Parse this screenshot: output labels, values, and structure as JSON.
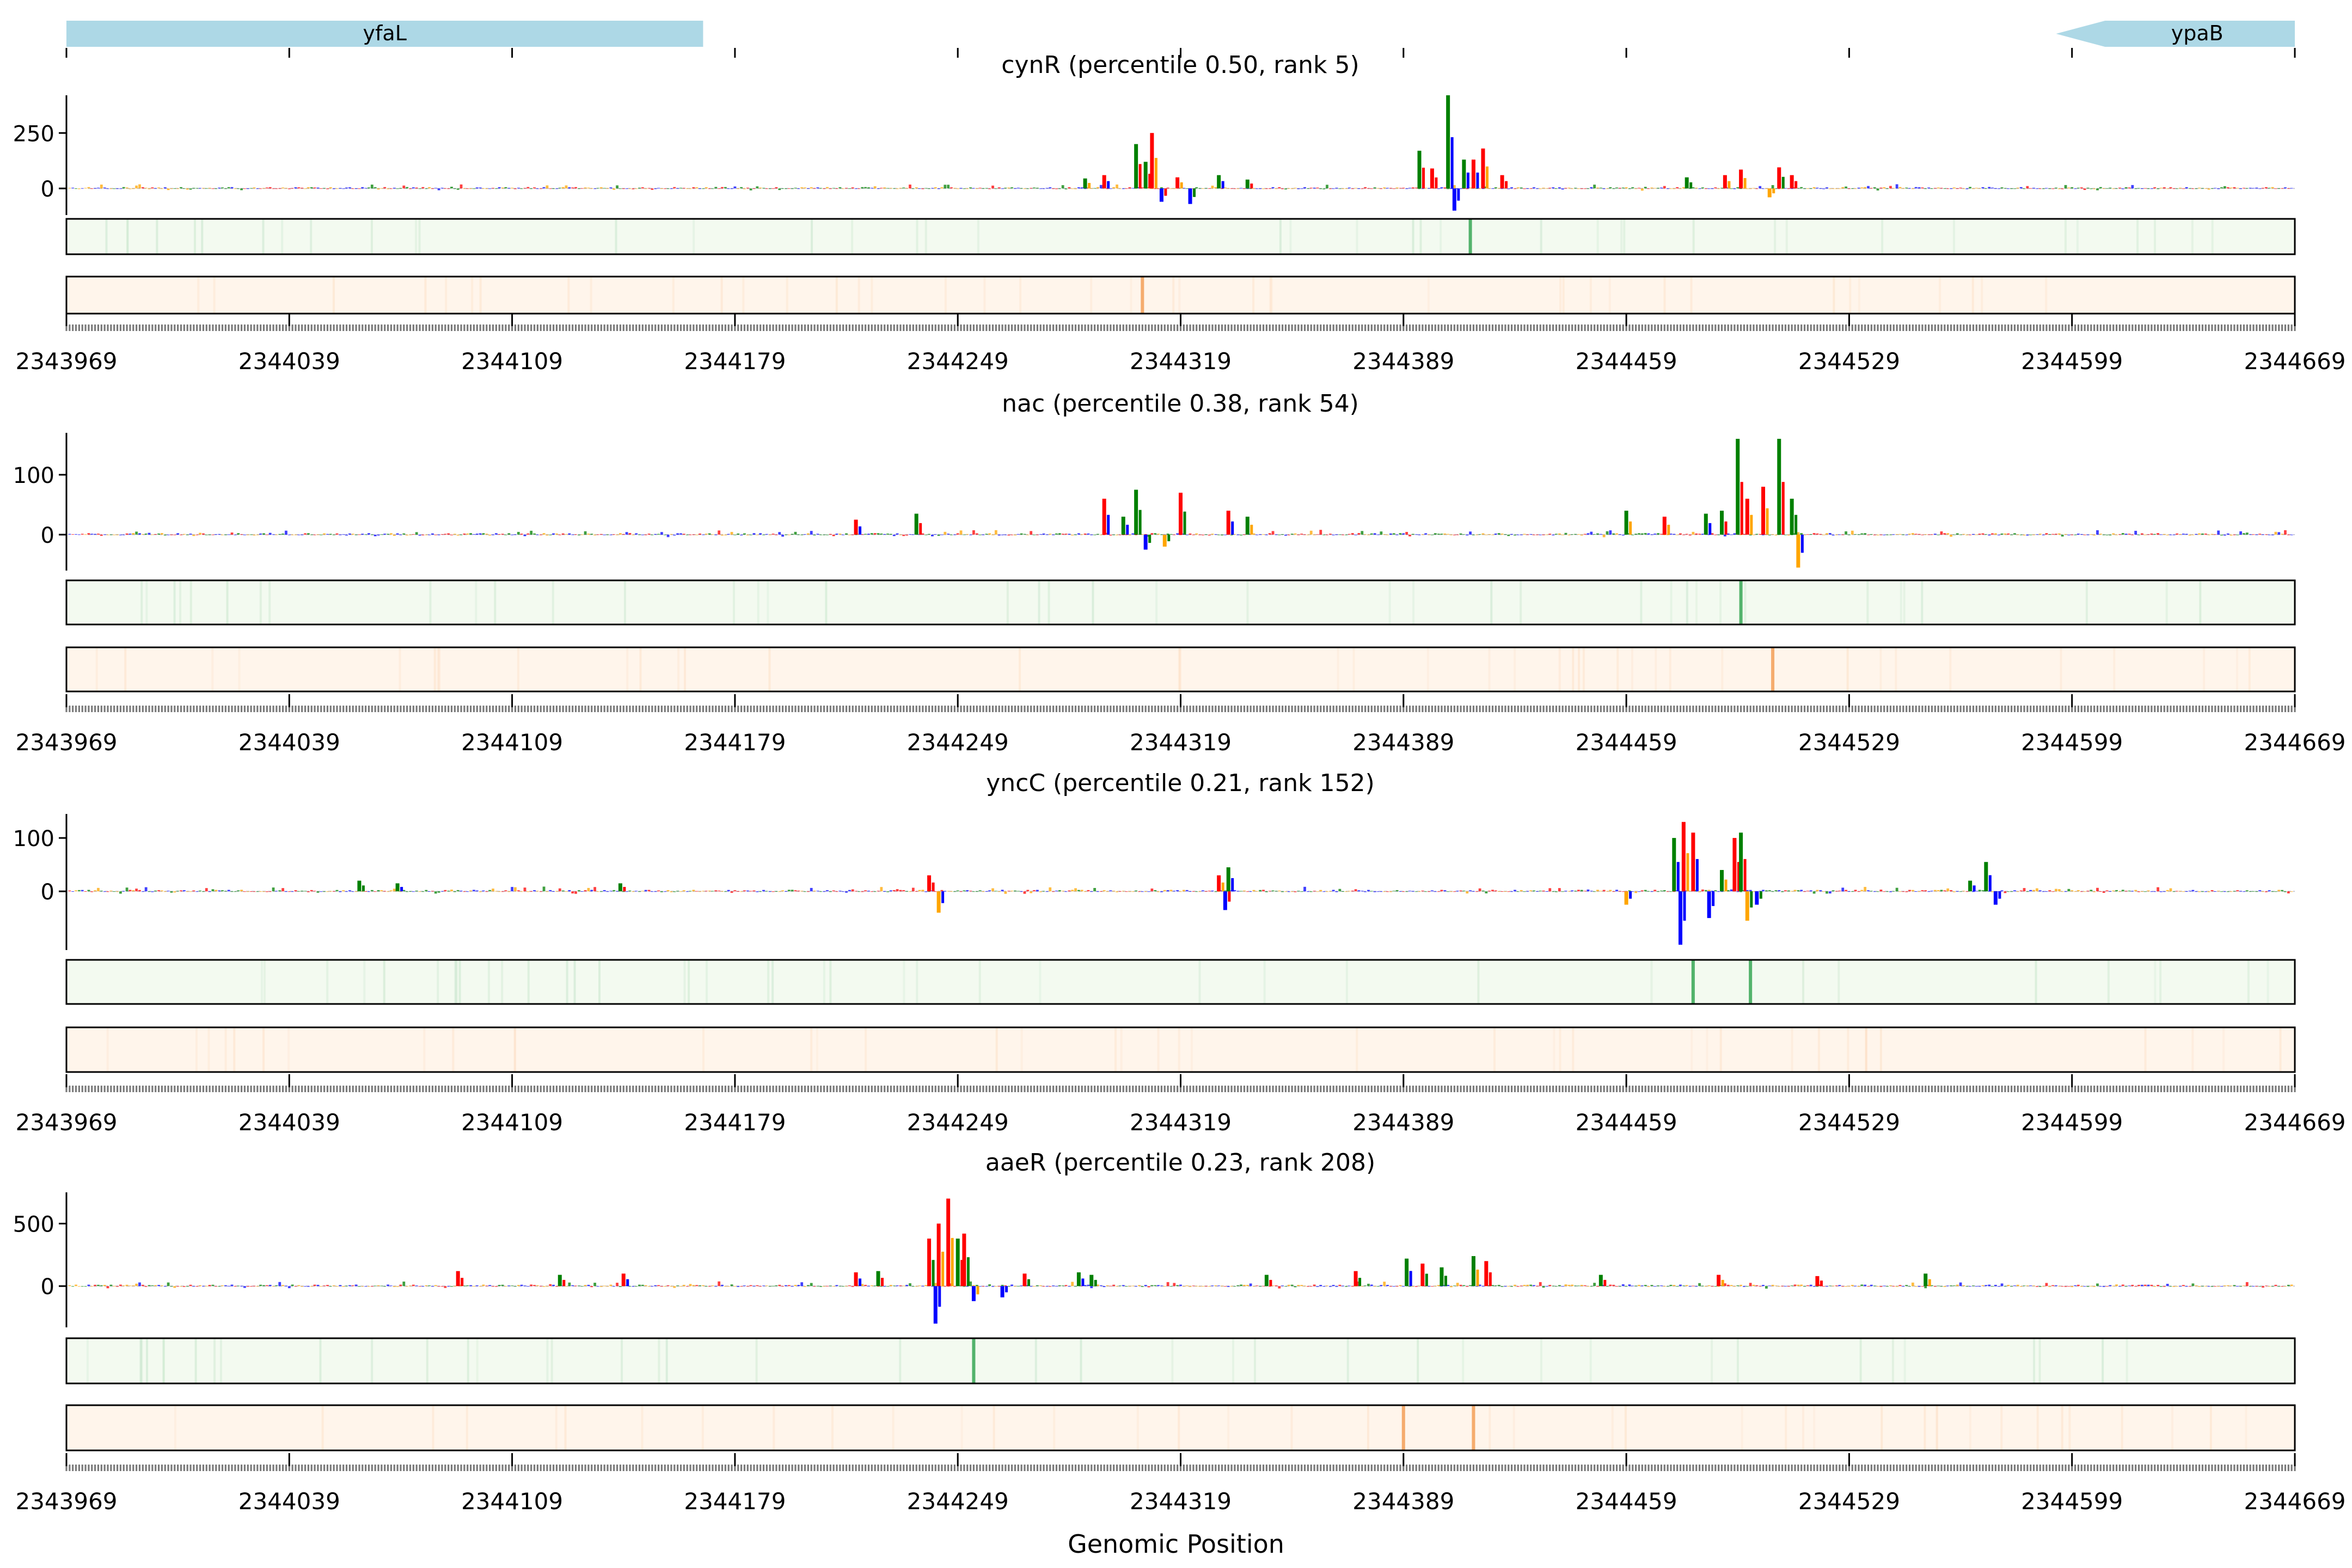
{
  "figure": {
    "xlabel": "Genomic Position",
    "x_range": [
      2343969,
      2344669
    ],
    "x_ticks": [
      2343969,
      2344039,
      2344109,
      2344179,
      2344249,
      2344319,
      2344389,
      2344459,
      2344529,
      2344599,
      2344669
    ]
  },
  "genes": [
    {
      "name": "yfaL",
      "start": 2343969,
      "end": 2344169,
      "strand": "-",
      "color": "#add8e6"
    },
    {
      "name": "ypaB",
      "start": 2344594,
      "end": 2344669,
      "strand": "-",
      "color": "#add8e6"
    }
  ],
  "colors": {
    "A": "#008000",
    "C": "#0000ff",
    "G": "#ffa500",
    "T": "#ff0000",
    "heat_green_bg": "#f3faf0",
    "heat_green_peak": "#41ab5d",
    "heat_orange_bg": "#fff5eb",
    "heat_orange_peak": "#f4a460"
  },
  "chart_data": [
    {
      "type": "bar",
      "title": "cynR (percentile 0.50, rank 5)",
      "yticks": [
        0,
        250
      ],
      "ylim": [
        -120,
        420
      ],
      "peaks": [
        {
          "x": 2344289,
          "v": 45
        },
        {
          "x": 2344295,
          "v": 60
        },
        {
          "x": 2344305,
          "v": 200
        },
        {
          "x": 2344308,
          "v": 120
        },
        {
          "x": 2344310,
          "v": 250
        },
        {
          "x": 2344313,
          "v": -60
        },
        {
          "x": 2344318,
          "v": 50
        },
        {
          "x": 2344322,
          "v": -70
        },
        {
          "x": 2344331,
          "v": 60
        },
        {
          "x": 2344340,
          "v": 40
        },
        {
          "x": 2344394,
          "v": 170
        },
        {
          "x": 2344398,
          "v": 90
        },
        {
          "x": 2344403,
          "v": 420
        },
        {
          "x": 2344405,
          "v": -100
        },
        {
          "x": 2344408,
          "v": 130
        },
        {
          "x": 2344411,
          "v": 130
        },
        {
          "x": 2344414,
          "v": 180
        },
        {
          "x": 2344420,
          "v": 60
        },
        {
          "x": 2344478,
          "v": 50
        },
        {
          "x": 2344490,
          "v": 60
        },
        {
          "x": 2344495,
          "v": 85
        },
        {
          "x": 2344504,
          "v": -40
        },
        {
          "x": 2344507,
          "v": 95
        },
        {
          "x": 2344511,
          "v": 60
        }
      ],
      "heat_green_peaks": [
        2344410
      ],
      "heat_orange_peaks": [
        2344307
      ]
    },
    {
      "type": "bar",
      "title": "nac (percentile 0.38, rank 54)",
      "yticks": [
        0,
        100
      ],
      "ylim": [
        -60,
        170
      ],
      "peaks": [
        {
          "x": 2344217,
          "v": 25
        },
        {
          "x": 2344236,
          "v": 35
        },
        {
          "x": 2344295,
          "v": 60
        },
        {
          "x": 2344301,
          "v": 30
        },
        {
          "x": 2344305,
          "v": 75
        },
        {
          "x": 2344308,
          "v": -25
        },
        {
          "x": 2344314,
          "v": -20
        },
        {
          "x": 2344319,
          "v": 70
        },
        {
          "x": 2344334,
          "v": 40
        },
        {
          "x": 2344340,
          "v": 30
        },
        {
          "x": 2344459,
          "v": 40
        },
        {
          "x": 2344471,
          "v": 30
        },
        {
          "x": 2344484,
          "v": 35
        },
        {
          "x": 2344489,
          "v": 40
        },
        {
          "x": 2344494,
          "v": 160
        },
        {
          "x": 2344497,
          "v": 60
        },
        {
          "x": 2344502,
          "v": 80
        },
        {
          "x": 2344507,
          "v": 160
        },
        {
          "x": 2344511,
          "v": 60
        },
        {
          "x": 2344513,
          "v": -55
        }
      ],
      "heat_green_peaks": [
        2344495
      ],
      "heat_orange_peaks": [
        2344505
      ]
    },
    {
      "type": "bar",
      "title": "yncC (percentile 0.21, rank 152)",
      "yticks": [
        0,
        100
      ],
      "ylim": [
        -110,
        145
      ],
      "peaks": [
        {
          "x": 2344061,
          "v": 20
        },
        {
          "x": 2344073,
          "v": 15
        },
        {
          "x": 2344143,
          "v": 15
        },
        {
          "x": 2344240,
          "v": 30
        },
        {
          "x": 2344243,
          "v": -40
        },
        {
          "x": 2344331,
          "v": 30
        },
        {
          "x": 2344333,
          "v": -35
        },
        {
          "x": 2344334,
          "v": 45
        },
        {
          "x": 2344459,
          "v": -25
        },
        {
          "x": 2344474,
          "v": 100
        },
        {
          "x": 2344476,
          "v": -100
        },
        {
          "x": 2344477,
          "v": 130
        },
        {
          "x": 2344480,
          "v": 110
        },
        {
          "x": 2344485,
          "v": -50
        },
        {
          "x": 2344489,
          "v": 40
        },
        {
          "x": 2344493,
          "v": 100
        },
        {
          "x": 2344495,
          "v": 110
        },
        {
          "x": 2344497,
          "v": -55
        },
        {
          "x": 2344500,
          "v": -25
        },
        {
          "x": 2344572,
          "v": 55
        },
        {
          "x": 2344567,
          "v": 20
        },
        {
          "x": 2344575,
          "v": -25
        }
      ],
      "heat_green_peaks": [
        2344480,
        2344498
      ],
      "heat_orange_peaks": []
    },
    {
      "type": "bar",
      "title": "aaeR (percentile 0.23, rank 208)",
      "yticks": [
        0,
        500
      ],
      "ylim": [
        -330,
        750
      ],
      "peaks": [
        {
          "x": 2344092,
          "v": 120
        },
        {
          "x": 2344124,
          "v": 90
        },
        {
          "x": 2344144,
          "v": 100
        },
        {
          "x": 2344217,
          "v": 110
        },
        {
          "x": 2344224,
          "v": 120
        },
        {
          "x": 2344240,
          "v": 380
        },
        {
          "x": 2344242,
          "v": -300
        },
        {
          "x": 2344243,
          "v": 500
        },
        {
          "x": 2344246,
          "v": 700
        },
        {
          "x": 2344249,
          "v": 380
        },
        {
          "x": 2344251,
          "v": 420
        },
        {
          "x": 2344254,
          "v": -120
        },
        {
          "x": 2344263,
          "v": -90
        },
        {
          "x": 2344270,
          "v": 100
        },
        {
          "x": 2344287,
          "v": 110
        },
        {
          "x": 2344291,
          "v": 90
        },
        {
          "x": 2344346,
          "v": 90
        },
        {
          "x": 2344374,
          "v": 120
        },
        {
          "x": 2344390,
          "v": 220
        },
        {
          "x": 2344395,
          "v": 180
        },
        {
          "x": 2344401,
          "v": 150
        },
        {
          "x": 2344411,
          "v": 240
        },
        {
          "x": 2344415,
          "v": 200
        },
        {
          "x": 2344451,
          "v": 90
        },
        {
          "x": 2344488,
          "v": 90
        },
        {
          "x": 2344519,
          "v": 80
        },
        {
          "x": 2344553,
          "v": 100
        }
      ],
      "heat_green_peaks": [
        2344254
      ],
      "heat_orange_peaks": [
        2344389,
        2344411
      ]
    }
  ]
}
